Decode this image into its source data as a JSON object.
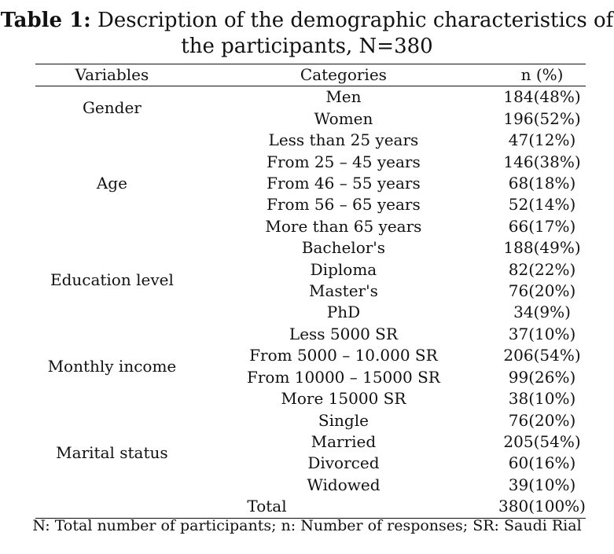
{
  "caption": {
    "label": "Table 1:",
    "title_line1": " Description of the demographic characteristics of",
    "title_line2": "the participants, N=380"
  },
  "table": {
    "headers": {
      "variables": "Variables",
      "categories": "Categories",
      "n_percent": "n (%)"
    },
    "groups": [
      {
        "variable": "Gender",
        "rows": [
          {
            "category": "Men",
            "value": "184(48%)"
          },
          {
            "category": "Women",
            "value": "196(52%)"
          }
        ]
      },
      {
        "variable": "Age",
        "rows": [
          {
            "category": "Less than 25 years",
            "value": "47(12%)"
          },
          {
            "category": "From 25 – 45 years",
            "value": "146(38%)"
          },
          {
            "category": "From 46 – 55 years",
            "value": "68(18%)"
          },
          {
            "category": "From 56 – 65 years",
            "value": "52(14%)"
          },
          {
            "category": "More than 65 years",
            "value": "66(17%)"
          }
        ]
      },
      {
        "variable": "Education level",
        "rows": [
          {
            "category": "Bachelor's",
            "value": "188(49%)"
          },
          {
            "category": "Diploma",
            "value": "82(22%)"
          },
          {
            "category": "Master's",
            "value": "76(20%)"
          },
          {
            "category": "PhD",
            "value": "34(9%)"
          }
        ]
      },
      {
        "variable": "Monthly income",
        "rows": [
          {
            "category": "Less 5000 SR",
            "value": "37(10%)"
          },
          {
            "category": "From 5000 – 10.000 SR",
            "value": "206(54%)"
          },
          {
            "category": "From 10000 – 15000 SR",
            "value": "99(26%)"
          },
          {
            "category": "More 15000 SR",
            "value": "38(10%)"
          }
        ]
      },
      {
        "variable": "Marital status",
        "rows": [
          {
            "category": "Single",
            "value": "76(20%)"
          },
          {
            "category": "Married",
            "value": "205(54%)"
          },
          {
            "category": "Divorced",
            "value": "60(16%)"
          },
          {
            "category": "Widowed",
            "value": "39(10%)"
          }
        ]
      }
    ],
    "total": {
      "label": "Total",
      "value": "380(100%)"
    }
  },
  "footnote": "N: Total number of participants; n: Number of responses; SR: Saudi Rial"
}
